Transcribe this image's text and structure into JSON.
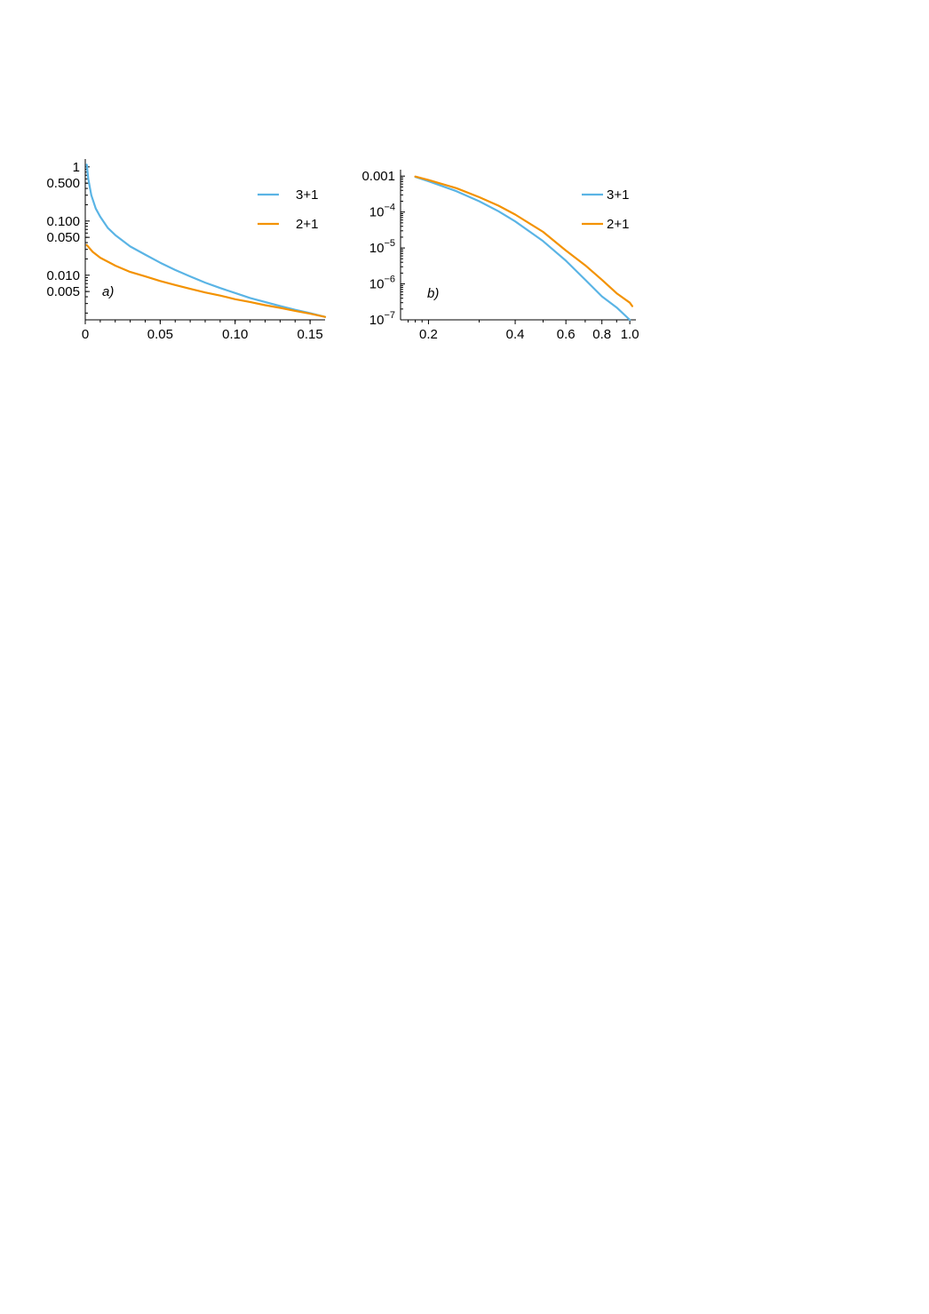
{
  "colors": {
    "series_3p1": "#5ab4e5",
    "series_2p1": "#f39200"
  },
  "chart_data": [
    {
      "type": "line",
      "panel_label": "a)",
      "xscale": "linear",
      "yscale": "log",
      "xlim": [
        0,
        0.16
      ],
      "ylim": [
        0.0015,
        1.2
      ],
      "xticks": [
        0,
        0.05,
        0.1,
        0.15
      ],
      "xtick_labels": [
        "0",
        "0.05",
        "0.10",
        "0.15"
      ],
      "yticks": [
        1,
        0.5,
        0.1,
        0.05,
        0.01,
        0.005
      ],
      "ytick_labels": [
        "1",
        "0.500",
        "0.100",
        "0.050",
        "0.010",
        "0.005"
      ],
      "legend": {
        "position": "top-right",
        "entries": [
          "3+1",
          "2+1"
        ]
      },
      "series": [
        {
          "name": "3+1",
          "color": "#5ab4e5",
          "x": [
            0.001,
            0.002,
            0.004,
            0.007,
            0.01,
            0.015,
            0.02,
            0.03,
            0.04,
            0.05,
            0.06,
            0.07,
            0.08,
            0.09,
            0.1,
            0.11,
            0.12,
            0.13,
            0.14,
            0.15,
            0.16
          ],
          "y": [
            1.1,
            0.6,
            0.3,
            0.17,
            0.12,
            0.075,
            0.055,
            0.034,
            0.024,
            0.017,
            0.0125,
            0.0095,
            0.0073,
            0.0058,
            0.0047,
            0.0038,
            0.0032,
            0.0027,
            0.0023,
            0.002,
            0.0017
          ]
        },
        {
          "name": "2+1",
          "color": "#f39200",
          "x": [
            0.001,
            0.005,
            0.01,
            0.02,
            0.03,
            0.04,
            0.05,
            0.06,
            0.07,
            0.08,
            0.09,
            0.1,
            0.11,
            0.12,
            0.13,
            0.14,
            0.15,
            0.16
          ],
          "y": [
            0.036,
            0.027,
            0.021,
            0.015,
            0.0115,
            0.0095,
            0.0078,
            0.0066,
            0.0056,
            0.0048,
            0.0042,
            0.0036,
            0.0032,
            0.0028,
            0.0025,
            0.0022,
            0.00195,
            0.0017
          ]
        }
      ]
    },
    {
      "type": "line",
      "panel_label": "b)",
      "xscale": "log",
      "yscale": "log",
      "xlim": [
        0.16,
        1.05
      ],
      "ylim": [
        1e-07,
        0.0012
      ],
      "xticks": [
        0.2,
        0.4,
        0.6,
        0.8,
        1.0
      ],
      "xtick_labels": [
        "0.2",
        "0.4",
        "0.6",
        "0.8",
        "1.0"
      ],
      "yticks": [
        0.001,
        0.0001,
        1e-05,
        1e-06,
        1e-07
      ],
      "ytick_labels": [
        {
          "text": "0.001"
        },
        {
          "base": "10",
          "exp": "−4"
        },
        {
          "base": "10",
          "exp": "−5"
        },
        {
          "base": "10",
          "exp": "−6"
        },
        {
          "base": "10",
          "exp": "−7"
        }
      ],
      "legend": {
        "position": "top-right",
        "entries": [
          "3+1",
          "2+1"
        ]
      },
      "series": [
        {
          "name": "3+1",
          "color": "#5ab4e5",
          "x": [
            0.18,
            0.2,
            0.25,
            0.3,
            0.35,
            0.4,
            0.5,
            0.6,
            0.7,
            0.8,
            0.9,
            1.0
          ],
          "y": [
            0.00095,
            0.00072,
            0.00038,
            0.0002,
            0.000105,
            5.5e-05,
            1.55e-05,
            4.4e-06,
            1.3e-06,
            4.5e-07,
            2.2e-07,
            1e-07
          ]
        },
        {
          "name": "2+1",
          "color": "#f39200",
          "x": [
            0.18,
            0.2,
            0.25,
            0.3,
            0.35,
            0.4,
            0.5,
            0.6,
            0.7,
            0.8,
            0.9,
            1.0,
            1.02
          ],
          "y": [
            0.00097,
            0.00078,
            0.00046,
            0.00026,
            0.00015,
            8.5e-05,
            2.8e-05,
            8.5e-06,
            3.3e-06,
            1.3e-06,
            5.5e-07,
            3e-07,
            2.4e-07
          ]
        }
      ]
    }
  ]
}
